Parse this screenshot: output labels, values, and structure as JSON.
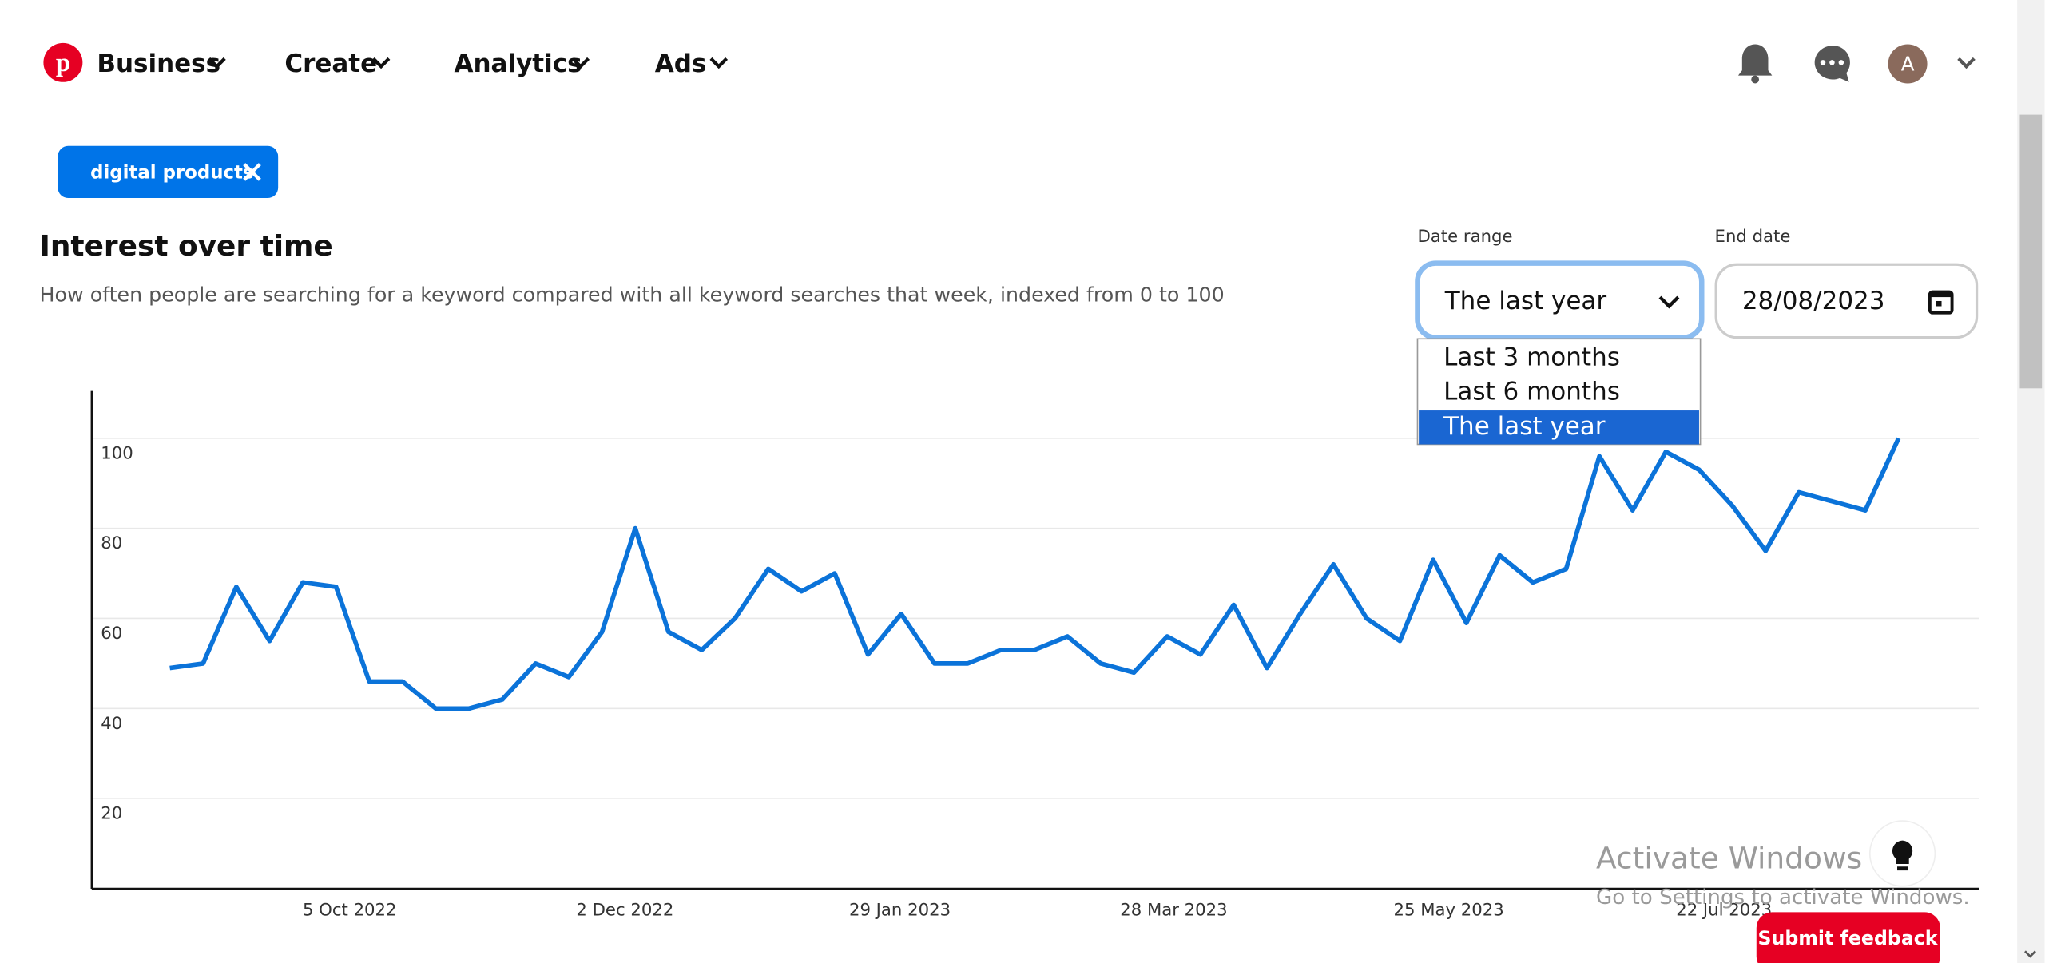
{
  "nav": {
    "items": [
      "Business",
      "Create",
      "Analytics",
      "Ads"
    ],
    "avatar": "A"
  },
  "filter_chip": "digital products",
  "section": {
    "title": "Interest over time",
    "description": "How often people are searching for a keyword compared with all keyword searches that week, indexed from 0 to 100"
  },
  "date_range": {
    "label": "Date range",
    "selected": "The last year",
    "options": [
      "Last 3 months",
      "Last 6 months",
      "The last year"
    ]
  },
  "end_date": {
    "label": "End date",
    "value": "28/08/2023"
  },
  "chart_data": {
    "type": "line",
    "color": "#0b73d9",
    "grid": true,
    "categories": [
      null,
      null,
      null,
      null,
      null,
      null,
      null,
      null,
      null,
      null,
      null,
      null,
      null,
      null,
      null,
      null,
      null,
      null,
      null,
      null,
      null,
      null,
      null,
      null,
      null,
      null,
      null,
      null,
      null,
      null,
      null,
      null,
      null,
      null,
      null,
      null,
      null,
      null,
      null,
      null,
      null,
      null,
      null,
      null,
      null,
      null,
      null,
      null,
      null,
      null,
      null,
      null,
      null
    ],
    "values": [
      49,
      50,
      67,
      55,
      68,
      67,
      46,
      46,
      40,
      40,
      42,
      50,
      47,
      57,
      80,
      57,
      53,
      60,
      71,
      66,
      70,
      52,
      61,
      50,
      50,
      53,
      53,
      56,
      50,
      48,
      56,
      52,
      63,
      49,
      61,
      72,
      60,
      55,
      73,
      59,
      74,
      68,
      71,
      96,
      84,
      97,
      93,
      85,
      75,
      88,
      86,
      84,
      100
    ],
    "xlim": [
      -2.35,
      54.43
    ],
    "xticks": [
      {
        "value": 5.41,
        "label": "5 Oct 2022"
      },
      {
        "value": 13.69,
        "label": "2 Dec 2022"
      },
      {
        "value": 21.96,
        "label": "29 Jan 2023"
      },
      {
        "value": 30.2,
        "label": "28 Mar 2023"
      },
      {
        "value": 38.47,
        "label": "25 May 2023"
      },
      {
        "value": 46.75,
        "label": "22 Jul 2023"
      }
    ],
    "ylim": [
      0,
      110.5
    ],
    "yticks": [
      20,
      40,
      60,
      80,
      100
    ]
  },
  "watermark": {
    "title": "Activate Windows",
    "subtitle": "Go to Settings to activate Windows."
  },
  "feedback_button": "Submit feedback"
}
